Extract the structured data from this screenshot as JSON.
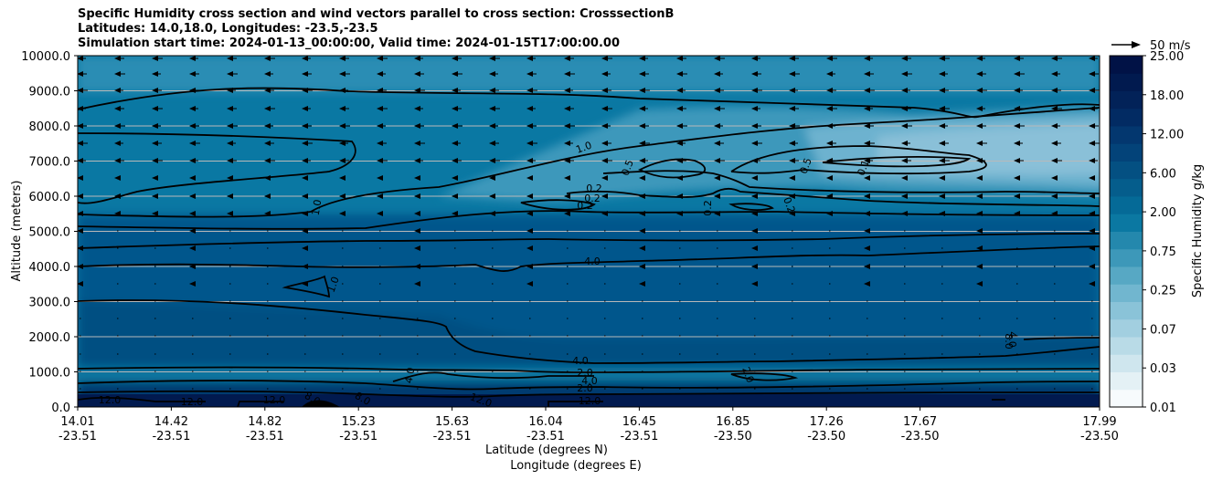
{
  "chart_data": {
    "type": "contour",
    "title_lines": [
      "Specific Humidity cross section and wind vectors parallel to cross section: CrosssectionB",
      "Latitudes: 14.0,18.0, Longitudes: -23.5,-23.5",
      "Simulation start time: 2024-01-13_00:00:00, Valid time: 2024-01-15T17:00:00.00"
    ],
    "ylabel": "Altitude (meters)",
    "xlabel": "Latitude (degrees N)",
    "xlabel2": "Longitude (degrees E)",
    "ylim": [
      0,
      10000
    ],
    "yticks": [
      "0.0",
      "1000.0",
      "2000.0",
      "3000.0",
      "4000.0",
      "5000.0",
      "6000.0",
      "7000.0",
      "8000.0",
      "9000.0",
      "10000.0"
    ],
    "xticks": [
      {
        "lat": "14.01",
        "lon": "-23.51"
      },
      {
        "lat": "14.42",
        "lon": "-23.51"
      },
      {
        "lat": "14.82",
        "lon": "-23.51"
      },
      {
        "lat": "15.23",
        "lon": "-23.51"
      },
      {
        "lat": "15.63",
        "lon": "-23.51"
      },
      {
        "lat": "16.04",
        "lon": "-23.51"
      },
      {
        "lat": "16.45",
        "lon": "-23.51"
      },
      {
        "lat": "16.85",
        "lon": "-23.50"
      },
      {
        "lat": "17.26",
        "lon": "-23.50"
      },
      {
        "lat": "17.67",
        "lon": "-23.50"
      },
      {
        "lat": "17.99",
        "lon": "-23.50"
      }
    ],
    "grid": true,
    "colorbar": {
      "label": "Specific Humidity g/kg",
      "ticks": [
        "0.01",
        "0.03",
        "0.07",
        "0.25",
        "0.75",
        "2.00",
        "6.00",
        "12.00",
        "18.00",
        "25.00"
      ]
    },
    "contour_labels": [
      "12.0",
      "12.0",
      "12.0",
      "8.0",
      "8.0",
      "4.0",
      "2.0",
      "12.0",
      "12.0",
      "4.0",
      "2.0",
      "2.0",
      "4.0",
      "8.0",
      "1.0",
      "0.5",
      "0.2",
      "0.2",
      "1.0",
      "0.5",
      "0.2",
      "0.2",
      "0.1",
      "0.2",
      "0.1",
      "1.0",
      "4.0",
      "4.0"
    ],
    "quiver_key": "50 m/s",
    "colors": {
      "levels": [
        "#f7fbfd",
        "#e4f1f5",
        "#cfe6ee",
        "#b9dbe7",
        "#a2cfe0",
        "#8ac3d8",
        "#71b6cf",
        "#57a8c4",
        "#3d98b9",
        "#2488ad",
        "#0b78a2",
        "#056a97",
        "#055d8c",
        "#045082",
        "#034379",
        "#03376f",
        "#022b63",
        "#022258",
        "#011a4f",
        "#011246"
      ]
    }
  }
}
